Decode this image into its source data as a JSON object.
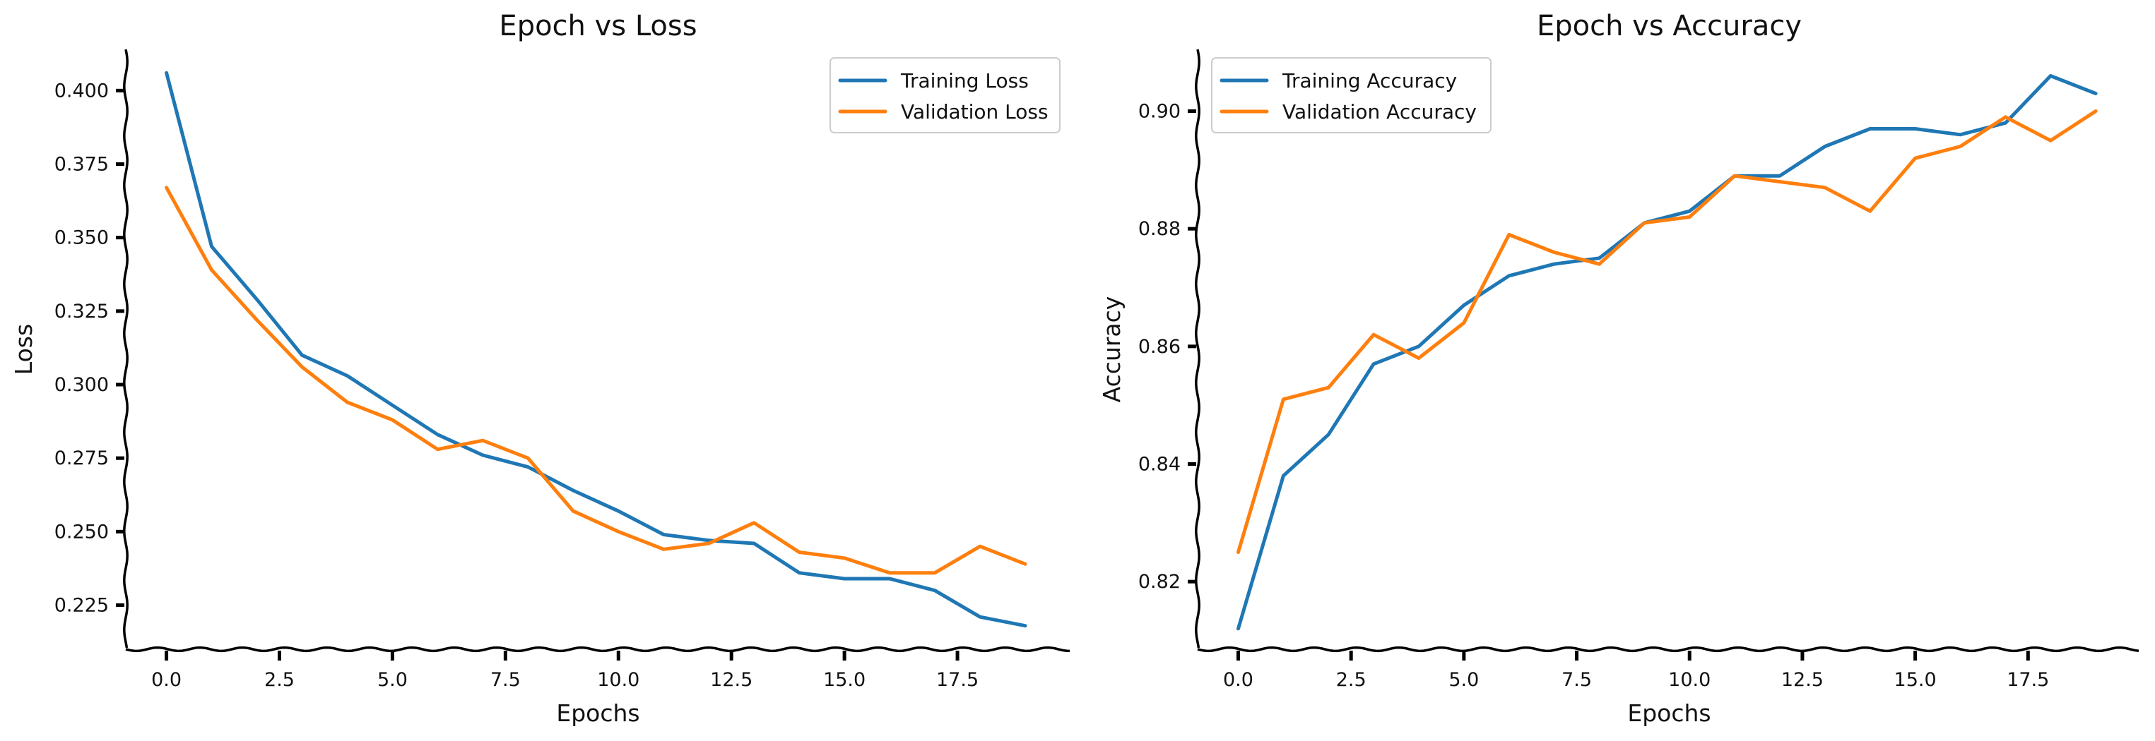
{
  "colors": {
    "training": "#1f77b4",
    "validation": "#ff7f0e",
    "axis": "#000000"
  },
  "chart_data": [
    {
      "type": "line",
      "title": "Epoch vs Loss",
      "xlabel": "Epochs",
      "ylabel": "Loss",
      "xlim": [
        -0.9,
        20.0
      ],
      "ylim": [
        0.21,
        0.414
      ],
      "xticks": [
        0.0,
        2.5,
        5.0,
        7.5,
        10.0,
        12.5,
        15.0,
        17.5
      ],
      "xtick_labels": [
        "0.0",
        "2.5",
        "5.0",
        "7.5",
        "10.0",
        "12.5",
        "15.0",
        "17.5"
      ],
      "yticks": [
        0.225,
        0.25,
        0.275,
        0.3,
        0.325,
        0.35,
        0.375,
        0.4
      ],
      "ytick_labels": [
        "0.225",
        "0.250",
        "0.275",
        "0.300",
        "0.325",
        "0.350",
        "0.375",
        "0.400"
      ],
      "legend_position": "top-right",
      "x": [
        0,
        1,
        2,
        3,
        4,
        5,
        6,
        7,
        8,
        9,
        10,
        11,
        12,
        13,
        14,
        15,
        16,
        17,
        18,
        19
      ],
      "series": [
        {
          "name": "Training Loss",
          "color": "#1f77b4",
          "values": [
            0.406,
            0.347,
            0.329,
            0.31,
            0.303,
            0.293,
            0.283,
            0.276,
            0.272,
            0.264,
            0.257,
            0.249,
            0.247,
            0.246,
            0.236,
            0.234,
            0.234,
            0.23,
            0.221,
            0.218
          ]
        },
        {
          "name": "Validation Loss",
          "color": "#ff7f0e",
          "values": [
            0.367,
            0.339,
            0.322,
            0.306,
            0.294,
            0.288,
            0.278,
            0.281,
            0.275,
            0.257,
            0.25,
            0.244,
            0.246,
            0.253,
            0.243,
            0.241,
            0.236,
            0.236,
            0.245,
            0.239
          ]
        }
      ]
    },
    {
      "type": "line",
      "title": "Epoch vs Accuracy",
      "xlabel": "Epochs",
      "ylabel": "Accuracy",
      "xlim": [
        -0.9,
        20.0
      ],
      "ylim": [
        0.8085,
        0.9105
      ],
      "xticks": [
        0.0,
        2.5,
        5.0,
        7.5,
        10.0,
        12.5,
        15.0,
        17.5
      ],
      "xtick_labels": [
        "0.0",
        "2.5",
        "5.0",
        "7.5",
        "10.0",
        "12.5",
        "15.0",
        "17.5"
      ],
      "yticks": [
        0.82,
        0.84,
        0.86,
        0.88,
        0.9
      ],
      "ytick_labels": [
        "0.82",
        "0.84",
        "0.86",
        "0.88",
        "0.90"
      ],
      "legend_position": "top-left",
      "x": [
        0,
        1,
        2,
        3,
        4,
        5,
        6,
        7,
        8,
        9,
        10,
        11,
        12,
        13,
        14,
        15,
        16,
        17,
        18,
        19
      ],
      "series": [
        {
          "name": "Training Accuracy",
          "color": "#1f77b4",
          "values": [
            0.812,
            0.838,
            0.845,
            0.857,
            0.86,
            0.867,
            0.872,
            0.874,
            0.875,
            0.881,
            0.883,
            0.889,
            0.889,
            0.894,
            0.897,
            0.897,
            0.896,
            0.898,
            0.906,
            0.903
          ]
        },
        {
          "name": "Validation Accuracy",
          "color": "#ff7f0e",
          "values": [
            0.825,
            0.851,
            0.853,
            0.862,
            0.858,
            0.864,
            0.879,
            0.876,
            0.874,
            0.881,
            0.882,
            0.889,
            0.888,
            0.887,
            0.883,
            0.892,
            0.894,
            0.899,
            0.895,
            0.9
          ]
        }
      ]
    }
  ]
}
